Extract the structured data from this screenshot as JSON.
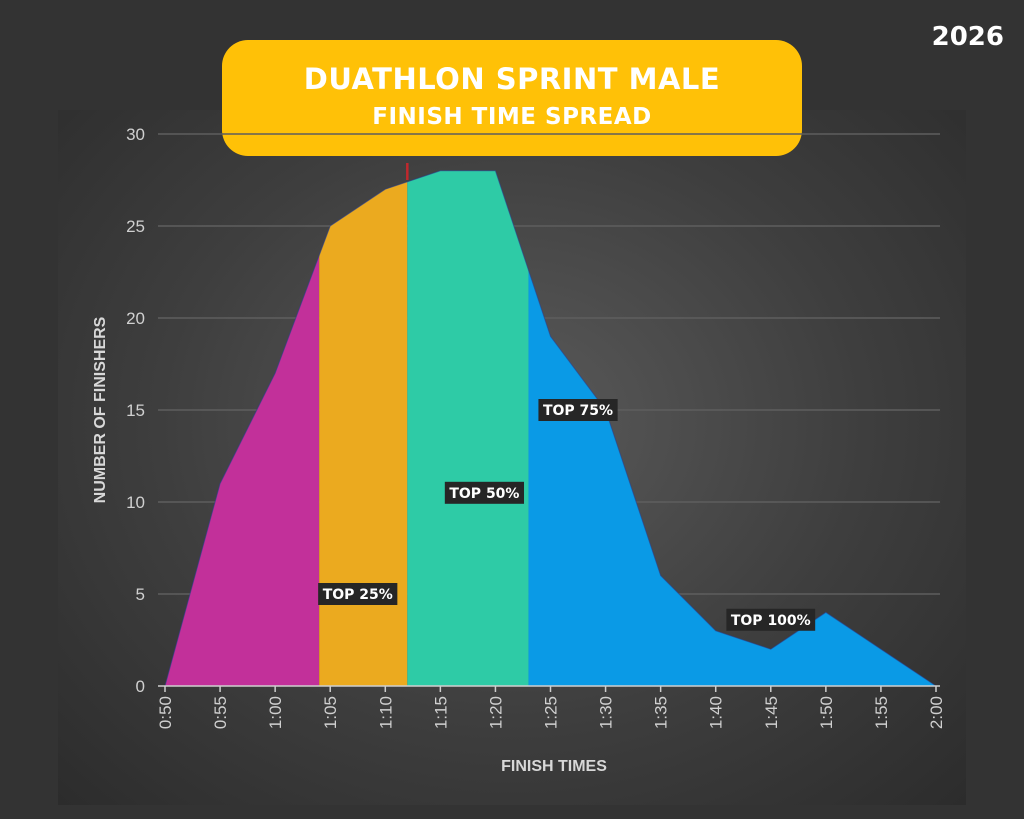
{
  "year": "2026",
  "title_line1": "DUATHLON SPRINT MALE",
  "title_line2": "FINISH TIME SPREAD",
  "chart_data": {
    "type": "area",
    "title": "DUATHLON SPRINT MALE FINISH TIME SPREAD",
    "xlabel": "FINISH TIMES",
    "ylabel": "NUMBER OF FINISHERS",
    "x": [
      "0:50",
      "0:55",
      "1:00",
      "1:05",
      "1:10",
      "1:15",
      "1:20",
      "1:25",
      "1:30",
      "1:35",
      "1:40",
      "1:45",
      "1:50",
      "1:55",
      "2:00"
    ],
    "values": [
      0,
      11,
      17,
      25,
      27,
      28,
      28,
      19,
      15,
      6,
      3,
      2,
      4,
      2,
      0
    ],
    "ylim": [
      0,
      30
    ],
    "yticks": [
      0,
      5,
      10,
      15,
      20,
      25,
      30
    ],
    "grid": true,
    "median_marker": "1:12",
    "median_color": "#c0282d",
    "segments": [
      {
        "label": "TOP 25%",
        "from": "0:50",
        "to": "1:04",
        "color": "#C2309A",
        "label_at": [
          3.5,
          5
        ]
      },
      {
        "label": "TOP 50%",
        "from": "1:04",
        "to": "1:12",
        "color": "#EBAA1F",
        "label_at": [
          5.8,
          10.5
        ]
      },
      {
        "label": "TOP 75%",
        "from": "1:12",
        "to": "1:23",
        "color": "#2ECBA6",
        "label_at": [
          7.5,
          15
        ]
      },
      {
        "label": "TOP 100%",
        "from": "1:23",
        "to": "2:00",
        "color": "#0A9AE6",
        "label_at": [
          11,
          3.6
        ]
      }
    ]
  }
}
